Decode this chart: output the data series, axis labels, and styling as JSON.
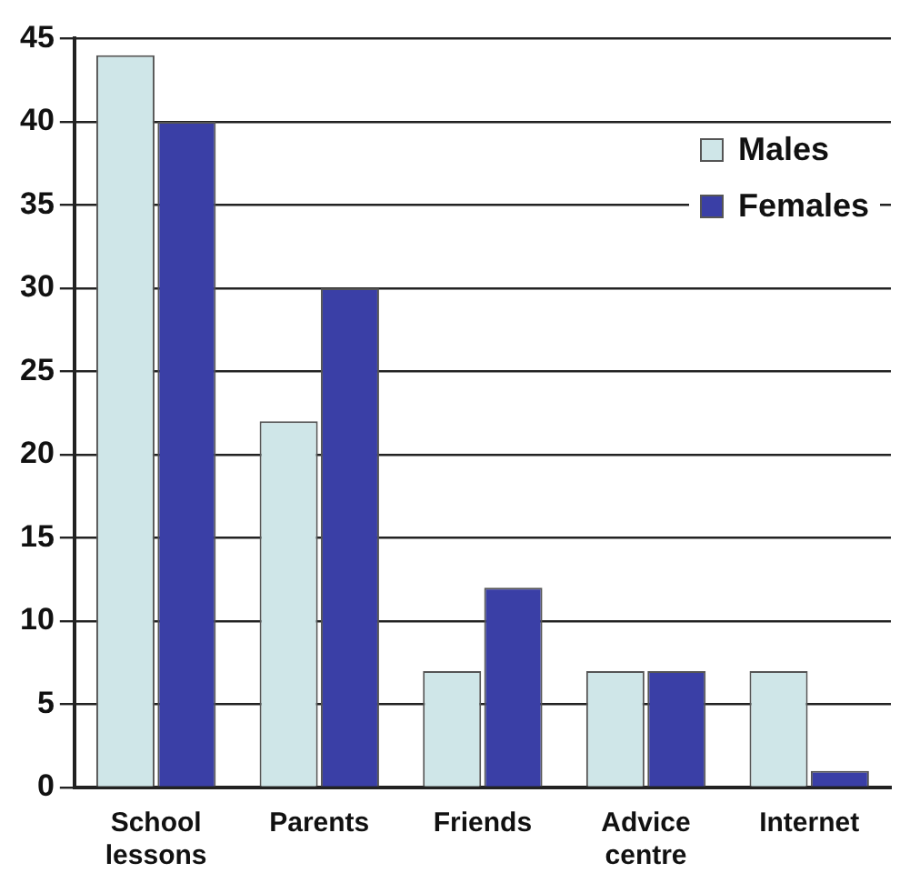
{
  "chart_data": {
    "type": "bar",
    "categories": [
      "School lessons",
      "Parents",
      "Friends",
      "Advice centre",
      "Internet"
    ],
    "series": [
      {
        "name": "Males",
        "color": "#cfe6e8",
        "values": [
          44,
          22,
          7,
          7,
          7
        ]
      },
      {
        "name": "Females",
        "color": "#3a3fa6",
        "values": [
          40,
          30,
          12,
          7,
          1
        ]
      }
    ],
    "ylim": [
      0,
      45
    ],
    "yticks": [
      0,
      5,
      10,
      15,
      20,
      25,
      30,
      35,
      40,
      45
    ],
    "grid": "y",
    "legend": "top right"
  }
}
